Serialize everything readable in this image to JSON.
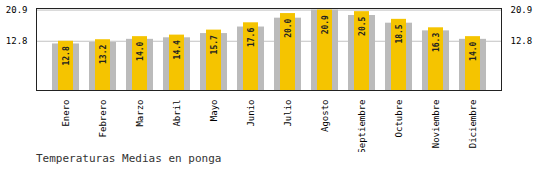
{
  "chart_data": {
    "type": "bar",
    "title": "Temperaturas Medias en ponga",
    "categories": [
      "Enero",
      "Febrero",
      "Marzo",
      "Abril",
      "Mayo",
      "Junio",
      "Julio",
      "Agosto",
      "Septiembre",
      "Octubre",
      "Noviembre",
      "Diciembre"
    ],
    "series": [
      {
        "color": "#BBBBBB",
        "values": [
          12.1,
          12.5,
          13.3,
          13.7,
          14.8,
          16.5,
          18.8,
          20.9,
          19.5,
          17.5,
          15.5,
          13.3
        ]
      },
      {
        "color": "#F5C400",
        "values": [
          12.8,
          13.2,
          14.0,
          14.4,
          15.7,
          17.6,
          20.0,
          20.9,
          20.5,
          18.5,
          16.3,
          14.0
        ],
        "value_labels": [
          "12.8",
          "13.2",
          "14.0",
          "14.4",
          "15.7",
          "17.6",
          "20.0",
          "20.9",
          "20.5",
          "18.5",
          "16.3",
          "14.0"
        ],
        "data_labels": true
      }
    ],
    "ylim": [
      0,
      21.318
    ],
    "yticks": [
      12.8,
      20.9
    ],
    "grid": true
  }
}
